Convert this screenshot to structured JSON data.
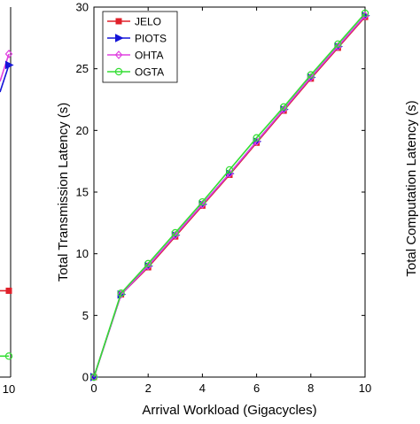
{
  "chart_data": [
    {
      "type": "line",
      "partial": true,
      "x_tick_labels": [
        "10"
      ],
      "series": [
        {
          "name": "JELO",
          "color": "#e0202a",
          "marker": "square",
          "values_visible_right_edge": [
            7.0
          ]
        },
        {
          "name": "PIOTS",
          "color": "#1515d8",
          "marker": "triangle-right",
          "values_visible_right_edge": [
            25.3
          ]
        },
        {
          "name": "OHTA",
          "color": "#e040e0",
          "marker": "diamond",
          "values_visible_right_edge": [
            26.2
          ]
        },
        {
          "name": "OGTA",
          "color": "#33dd33",
          "marker": "circle",
          "values_visible_right_edge": [
            1.7
          ]
        }
      ]
    },
    {
      "type": "line",
      "xlabel": "Arrival Workload (Gigacycles)",
      "ylabel": "Total Transmission Latency (s)",
      "xlim": [
        0,
        10
      ],
      "ylim": [
        0,
        30
      ],
      "x_ticks": [
        0,
        2,
        4,
        6,
        8,
        10
      ],
      "y_ticks": [
        0,
        5,
        10,
        15,
        20,
        25,
        30
      ],
      "x_tick_labels": [
        "0",
        "2",
        "4",
        "6",
        "8",
        "10"
      ],
      "y_tick_labels": [
        "0",
        "5",
        "10",
        "15",
        "20",
        "25",
        "30"
      ],
      "grid": false,
      "legend_position": "top-left",
      "x": [
        0,
        1,
        2,
        3,
        4,
        5,
        6,
        7,
        8,
        9,
        10
      ],
      "series": [
        {
          "name": "JELO",
          "color": "#e0202a",
          "marker": "square",
          "values": [
            0,
            6.7,
            8.9,
            11.4,
            13.9,
            16.4,
            19.0,
            21.6,
            24.2,
            26.7,
            29.2
          ]
        },
        {
          "name": "PIOTS",
          "color": "#1515d8",
          "marker": "triangle-right",
          "values": [
            0,
            6.7,
            9.0,
            11.5,
            14.0,
            16.5,
            19.1,
            21.7,
            24.3,
            26.8,
            29.3
          ]
        },
        {
          "name": "OHTA",
          "color": "#e040e0",
          "marker": "diamond",
          "values": [
            0,
            6.7,
            9.0,
            11.5,
            14.0,
            16.5,
            19.1,
            21.7,
            24.3,
            26.8,
            29.3
          ]
        },
        {
          "name": "OGTA",
          "color": "#33dd33",
          "marker": "circle",
          "values": [
            0,
            6.8,
            9.2,
            11.7,
            14.2,
            16.8,
            19.4,
            21.9,
            24.5,
            27.0,
            29.5
          ]
        }
      ]
    },
    {
      "type": "line",
      "partial": true,
      "ylabel": "Total Computation Latency (s)"
    }
  ]
}
